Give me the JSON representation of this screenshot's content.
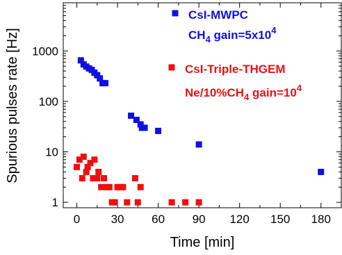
{
  "chart_data": {
    "type": "scatter",
    "xlabel": "Time [min]",
    "ylabel": "Spurious pulses rate [Hz]",
    "xlim": [
      -10,
      195
    ],
    "ylim": [
      0.78,
      9000
    ],
    "y_scale": "log",
    "x_ticks": [
      0,
      30,
      60,
      90,
      120,
      150,
      180
    ],
    "x_tick_labels": [
      "0",
      "30",
      "60",
      "90",
      "120",
      "150",
      "180"
    ],
    "y_ticks": [
      1,
      10,
      100,
      1000
    ],
    "y_tick_labels": [
      "1",
      "10",
      "100",
      "1000"
    ],
    "grid": false,
    "legend_position": "top-right",
    "series": [
      {
        "name": "CsI-MWPC",
        "legend_lines": [
          {
            "text": "CsI-MWPC"
          },
          {
            "text": "CH",
            "sub": "4",
            "text2": " gain=5x10",
            "sup": "4"
          }
        ],
        "color": "#1010e0",
        "marker": "square",
        "points": [
          [
            3,
            650
          ],
          [
            5,
            540
          ],
          [
            7,
            490
          ],
          [
            9,
            450
          ],
          [
            11,
            420
          ],
          [
            13,
            370
          ],
          [
            15,
            330
          ],
          [
            17,
            285
          ],
          [
            19,
            230
          ],
          [
            21,
            230
          ],
          [
            40,
            52
          ],
          [
            44,
            43
          ],
          [
            47,
            35
          ],
          [
            48,
            30
          ],
          [
            50,
            30
          ],
          [
            60,
            26
          ],
          [
            90,
            14
          ],
          [
            180,
            4
          ]
        ]
      },
      {
        "name": "CsI-Triple-THGEM",
        "legend_lines": [
          {
            "text": "CsI-Triple-THGEM"
          },
          {
            "text": "Ne/10%CH",
            "sub": "4",
            "text2": "  gain=10",
            "sup": "4"
          }
        ],
        "color": "#ee1010",
        "marker": "square",
        "points": [
          [
            0,
            5
          ],
          [
            2,
            7
          ],
          [
            4,
            3
          ],
          [
            5,
            8
          ],
          [
            7,
            4
          ],
          [
            8,
            5
          ],
          [
            10,
            6
          ],
          [
            12,
            3
          ],
          [
            13,
            7
          ],
          [
            15,
            3
          ],
          [
            16,
            4
          ],
          [
            18,
            2
          ],
          [
            20,
            3
          ],
          [
            22,
            2
          ],
          [
            24,
            2
          ],
          [
            26,
            1
          ],
          [
            28,
            1
          ],
          [
            30,
            2
          ],
          [
            32,
            2
          ],
          [
            34,
            2
          ],
          [
            37,
            1
          ],
          [
            43,
            3
          ],
          [
            45,
            1
          ],
          [
            47,
            2
          ],
          [
            70,
            1
          ],
          [
            80,
            1
          ],
          [
            90,
            1
          ]
        ]
      }
    ]
  }
}
